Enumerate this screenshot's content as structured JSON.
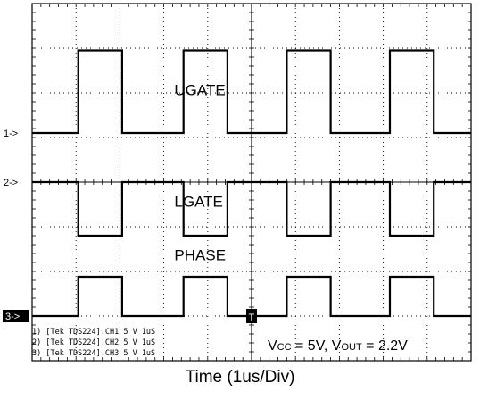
{
  "chart_data": {
    "type": "line",
    "xlabel": "Time (1us/Div)",
    "ylabel": "",
    "xlim": [
      0,
      10
    ],
    "ylim": [
      -4,
      4
    ],
    "grid": true,
    "series": [
      {
        "name": "UGATE",
        "marker": "1->",
        "x": [
          0,
          1.05,
          1.05,
          2.05,
          2.05,
          3.45,
          3.45,
          4.45,
          4.45,
          5.8,
          5.8,
          6.8,
          6.8,
          8.15,
          8.15,
          9.15,
          9.15,
          10
        ],
        "y": [
          1.1,
          1.1,
          2.95,
          2.95,
          1.1,
          1.1,
          2.95,
          2.95,
          1.1,
          1.1,
          2.95,
          2.95,
          1.1,
          1.1,
          2.95,
          2.95,
          1.1,
          1.1
        ]
      },
      {
        "name": "LGATE",
        "marker": "2->",
        "x": [
          0,
          1.05,
          1.05,
          2.05,
          2.05,
          3.45,
          3.45,
          4.45,
          4.45,
          5.8,
          5.8,
          6.8,
          6.8,
          8.15,
          8.15,
          9.15,
          9.15,
          10
        ],
        "y": [
          0,
          0,
          -1.2,
          -1.2,
          0,
          0,
          -1.2,
          -1.2,
          0,
          0,
          -1.2,
          -1.2,
          0,
          0,
          -1.2,
          -1.2,
          0,
          0
        ]
      },
      {
        "name": "PHASE",
        "marker": "3->",
        "x": [
          0,
          1.05,
          1.05,
          2.05,
          2.05,
          3.45,
          3.45,
          4.45,
          4.45,
          5.8,
          5.8,
          6.8,
          6.8,
          8.15,
          8.15,
          9.15,
          9.15,
          10
        ],
        "y": [
          -3.0,
          -3.0,
          -2.12,
          -2.12,
          -3.0,
          -3.0,
          -2.12,
          -2.12,
          -3.0,
          -3.0,
          -2.12,
          -2.12,
          -3.0,
          -3.0,
          -2.12,
          -2.12,
          -3.0,
          -3.0
        ]
      }
    ],
    "channel_notes": [
      "1) [Tek TDS224].CH1  5  V   1uS",
      "2) [Tek TDS224].CH2  5  V   1uS",
      "3) [Tek TDS224].CH3  5  V   1uS"
    ],
    "annotation": {
      "vcc_main": "V",
      "vcc_sub": "CC",
      "vcc_value": " = 5V, ",
      "vout_main": "V",
      "vout_sub": "OUT",
      "vout_value": " = 2.2V"
    },
    "trigger_marker": "T"
  }
}
